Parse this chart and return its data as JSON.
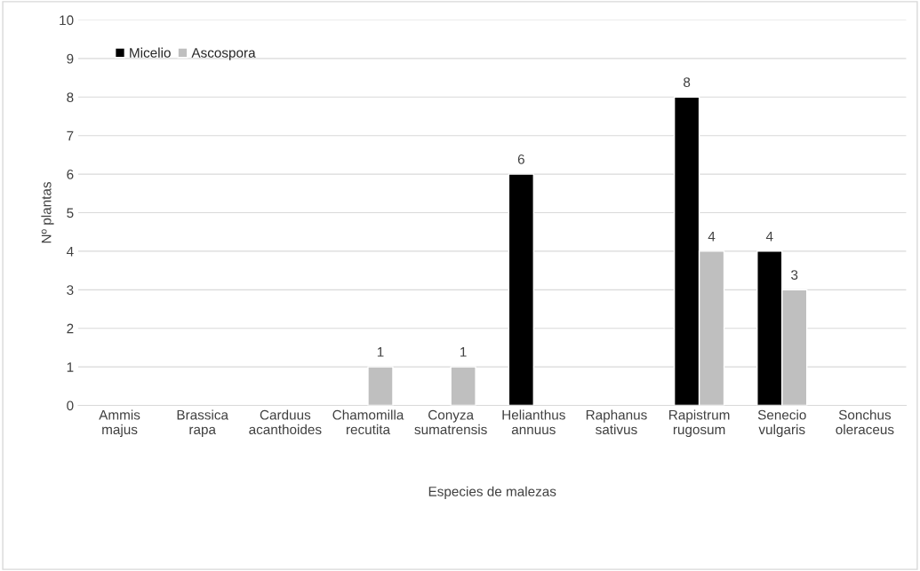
{
  "chart_data": {
    "type": "bar",
    "xlabel": "Especies de malezas",
    "ylabel": "Nº plantas",
    "categories": [
      "Ammis\nmajus",
      "Brassica\nrapa",
      "Carduus\nacanthoides",
      "Chamomilla\nrecutita",
      "Conyza\nsumatrensis",
      "Helianthus\nannuus",
      "Raphanus\nsativus",
      "Rapistrum\nrugosum",
      "Senecio\nvulgaris",
      "Sonchus\noleraceus"
    ],
    "series": [
      {
        "name": "Micelio",
        "color": "#000000",
        "values": [
          0,
          0,
          0,
          0,
          0,
          6,
          0,
          8,
          4,
          0
        ],
        "value_labels": [
          null,
          null,
          null,
          null,
          null,
          "6",
          null,
          "8",
          "4",
          null
        ]
      },
      {
        "name": "Ascospora",
        "color": "#bfbfbf",
        "values": [
          0,
          0,
          0,
          1,
          1,
          0,
          0,
          4,
          3,
          0
        ],
        "value_labels": [
          null,
          null,
          null,
          "1",
          "1",
          null,
          null,
          "4",
          "3",
          null
        ]
      }
    ],
    "ylim": [
      0,
      10
    ],
    "yticks": [
      0,
      1,
      2,
      3,
      4,
      5,
      6,
      7,
      8,
      9,
      10
    ],
    "grid": "y",
    "legend": "top left"
  }
}
